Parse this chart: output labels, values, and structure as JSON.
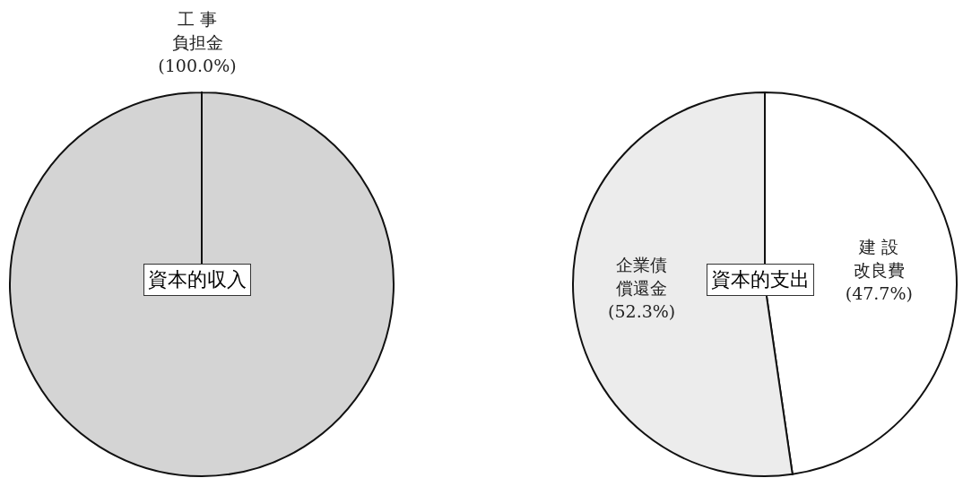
{
  "chart_data": [
    {
      "type": "pie",
      "title": "資本的収入",
      "categories": [
        "工 事負担金"
      ],
      "values": [
        100
      ],
      "value_labels": [
        "(100.0%)"
      ],
      "colors": [
        "#d4d4d4"
      ]
    },
    {
      "type": "pie",
      "title": "資本的支出",
      "categories": [
        "建 設改良費",
        "企業債償還金"
      ],
      "values": [
        47.7,
        52.3
      ],
      "value_labels": [
        "(47.7%)",
        "(52.3%)"
      ],
      "colors": [
        "#ffffff",
        "#ececec"
      ]
    }
  ]
}
